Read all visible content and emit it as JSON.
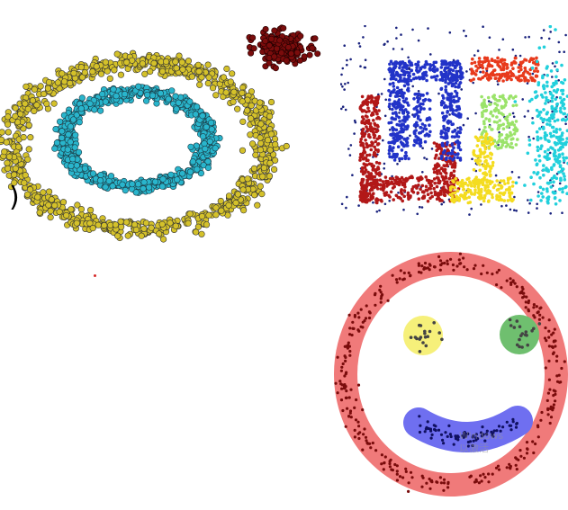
{
  "scene": {
    "description_name": "clustering-datasets-collage",
    "colors": {
      "ring_outer": "#d4c12a",
      "ring_inner": "#29b5cc",
      "blob_dark": "#7a0c0c",
      "noise_dot": "#1a237e",
      "dbscan_red": "#b21818",
      "dbscan_blue": "#2233c8",
      "dbscan_orange": "#e83a1c",
      "dbscan_lightgreen": "#9be36a",
      "dbscan_yellow": "#f4dc20",
      "dbscan_cyan": "#21d0dc",
      "smiley_ring": "#f07a7a",
      "smiley_dots": "#7a0c0c",
      "eye_left": "#f6f07a",
      "eye_right": "#6fbf6f",
      "mouth": "#6f6ff0"
    }
  },
  "fragments": {
    "paren": ")"
  },
  "watermark": {
    "line1": "Windows",
    "line2": "以激活"
  }
}
